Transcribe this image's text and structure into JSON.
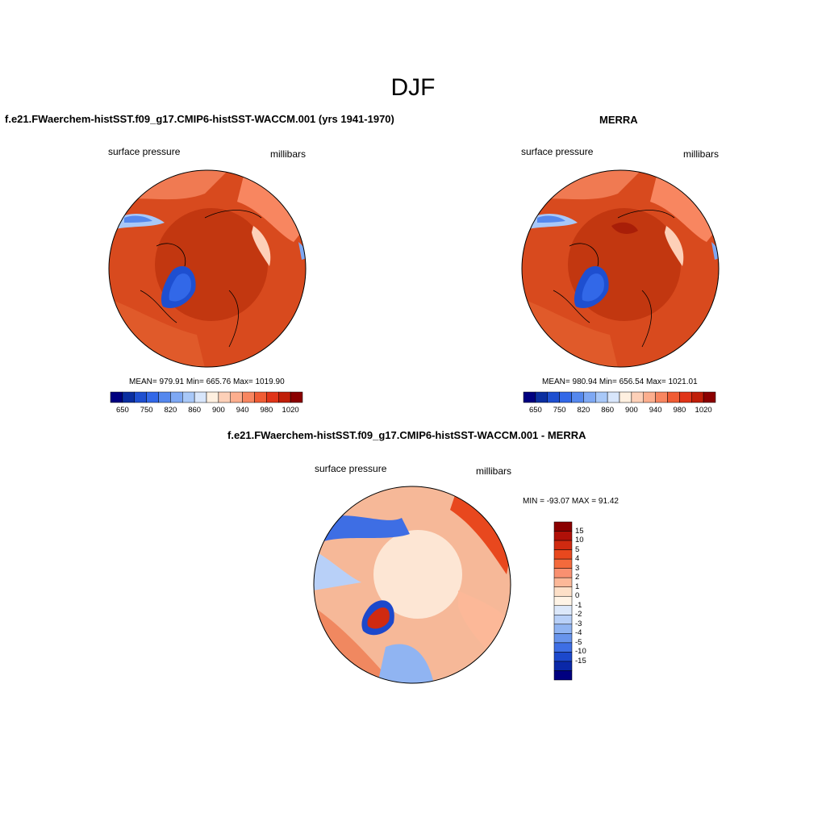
{
  "page": {
    "title": "DJF"
  },
  "panels": {
    "model": {
      "title": "f.e21.FWaerchem-histSST.f09_g17.CMIP6-histSST-WACCM.001 (yrs 1941-1970)",
      "left_label": "surface pressure",
      "right_label": "millibars",
      "stats": "MEAN= 979.91  Min= 665.76  Max= 1019.90"
    },
    "obs": {
      "title": "MERRA",
      "left_label": "surface pressure",
      "right_label": "millibars",
      "stats": "MEAN= 980.94  Min= 656.54  Max= 1021.01"
    },
    "diff": {
      "title": "f.e21.FWaerchem-histSST.f09_g17.CMIP6-histSST-WACCM.001 - MERRA",
      "left_label": "surface pressure",
      "right_label": "millibars",
      "stats": "MIN = -93.07 MAX =  91.42"
    }
  },
  "chart_data": [
    {
      "type": "heatmap",
      "projection": "north polar stereographic",
      "title": "f.e21.FWaerchem-histSST.f09_g17.CMIP6-histSST-WACCM.001 (yrs 1941-1970)",
      "variable": "surface pressure",
      "units": "millibars",
      "mean": 979.91,
      "min": 665.76,
      "max": 1019.9,
      "colorbar_levels": [
        650,
        700,
        750,
        800,
        820,
        840,
        860,
        880,
        900,
        920,
        940,
        960,
        980,
        1000,
        1020
      ],
      "colorbar_tick_labels": [
        "650",
        "750",
        "820",
        "860",
        "900",
        "940",
        "980",
        "1020"
      ],
      "colorbar_colors": [
        "#000080",
        "#0a2ea0",
        "#1e4fd0",
        "#3268e8",
        "#5588ee",
        "#7ea8f4",
        "#a8c8f8",
        "#d8e6fb",
        "#fff0e0",
        "#fdd0b8",
        "#fcae8e",
        "#f88660",
        "#f05c34",
        "#e03418",
        "#c01e08",
        "#8b0000"
      ]
    },
    {
      "type": "heatmap",
      "projection": "north polar stereographic",
      "title": "MERRA",
      "variable": "surface pressure",
      "units": "millibars",
      "mean": 980.94,
      "min": 656.54,
      "max": 1021.01,
      "colorbar_levels": [
        650,
        700,
        750,
        800,
        820,
        840,
        860,
        880,
        900,
        920,
        940,
        960,
        980,
        1000,
        1020
      ],
      "colorbar_tick_labels": [
        "650",
        "750",
        "820",
        "860",
        "900",
        "940",
        "980",
        "1020"
      ],
      "colorbar_colors": [
        "#000080",
        "#0a2ea0",
        "#1e4fd0",
        "#3268e8",
        "#5588ee",
        "#7ea8f4",
        "#a8c8f8",
        "#d8e6fb",
        "#fff0e0",
        "#fdd0b8",
        "#fcae8e",
        "#f88660",
        "#f05c34",
        "#e03418",
        "#c01e08",
        "#8b0000"
      ]
    },
    {
      "type": "heatmap",
      "projection": "north polar stereographic",
      "title": "f.e21.FWaerchem-histSST.f09_g17.CMIP6-histSST-WACCM.001 - MERRA",
      "variable": "surface pressure",
      "units": "millibars",
      "min": -93.07,
      "max": 91.42,
      "colorbar_tick_labels": [
        "15",
        "10",
        "5",
        "4",
        "3",
        "2",
        "1",
        "0",
        "-1",
        "-2",
        "-3",
        "-4",
        "-5",
        "-10",
        "-15"
      ],
      "colorbar_colors": [
        "#8b0000",
        "#b01008",
        "#d02a10",
        "#e8481e",
        "#f46a3c",
        "#f99070",
        "#fcb898",
        "#fde0c8",
        "#fff4e6",
        "#dce8fa",
        "#b8d0f8",
        "#90b4f2",
        "#6894ec",
        "#3e6ee4",
        "#1c48cc",
        "#0a28a8",
        "#000080"
      ]
    }
  ]
}
